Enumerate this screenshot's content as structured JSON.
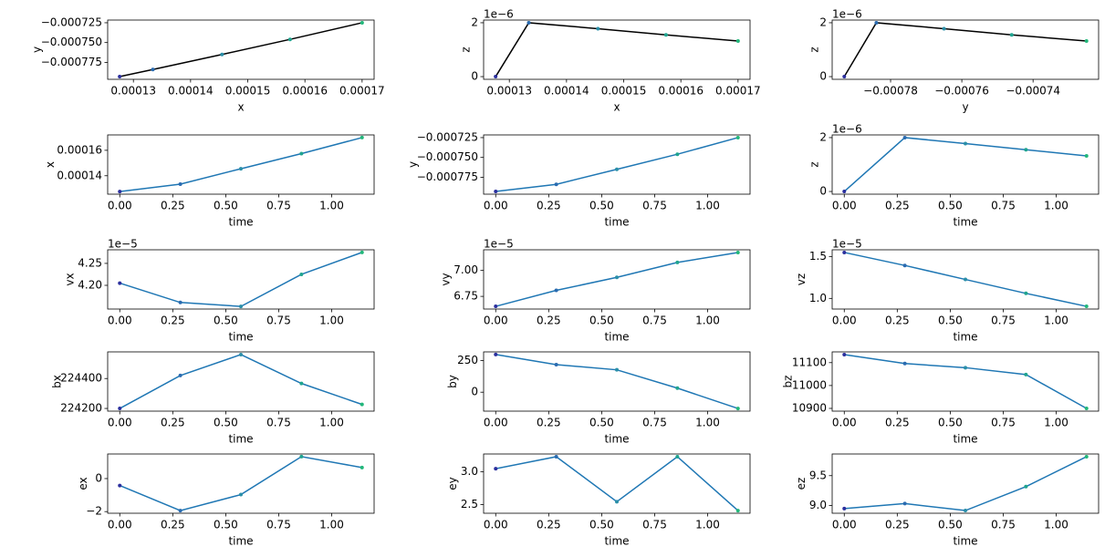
{
  "chart_data": [
    {
      "type": "line",
      "xlabel": "x",
      "ylabel": "y",
      "color": "#000000",
      "point_colors": [
        "#2b2f9e",
        "#2a6bb0",
        "#2a8fa8",
        "#1fa48f",
        "#22b77a"
      ],
      "x": [
        0.0001276,
        0.0001334,
        0.0001455,
        0.0001574,
        0.00017
      ],
      "values": [
        -0.000793,
        -0.000784,
        -0.000765,
        -0.000746,
        -0.000725
      ],
      "xlim": [
        0.0001255,
        0.0001721
      ],
      "xticks": [
        0.00013,
        0.00014,
        0.00015,
        0.00016,
        0.00017
      ],
      "ylim": [
        -0.0007964,
        -0.0007216
      ],
      "yticks": [
        {
          "value": -0.000775,
          "label": "−0.000775"
        },
        {
          "value": -0.00075,
          "label": "−0.000750"
        },
        {
          "value": -0.000725,
          "label": "−0.000725"
        }
      ]
    },
    {
      "type": "line",
      "xlabel": "x",
      "ylabel": "z",
      "offset_text": "1e−6",
      "color": "#000000",
      "point_colors": [
        "#2b2f9e",
        "#2a6bb0",
        "#2a8fa8",
        "#1fa48f",
        "#22b77a"
      ],
      "x": [
        0.0001276,
        0.0001334,
        0.0001455,
        0.0001574,
        0.00017
      ],
      "values": [
        0,
        2e-06,
        1.78e-06,
        1.55e-06,
        1.32e-06
      ],
      "xlim": [
        0.0001255,
        0.0001721
      ],
      "xticks": [
        0.00013,
        0.00014,
        0.00015,
        0.00016,
        0.00017
      ],
      "ylim": [
        -1e-07,
        2.1e-06
      ],
      "yticks": [
        0,
        {
          "value": 2e-06,
          "label": "2"
        }
      ]
    },
    {
      "type": "line",
      "xlabel": "y",
      "ylabel": "z",
      "offset_text": "1e−6",
      "color": "#000000",
      "point_colors": [
        "#2b2f9e",
        "#2a6bb0",
        "#2a8fa8",
        "#1fa48f",
        "#22b77a"
      ],
      "x": [
        -0.000793,
        -0.000784,
        -0.000765,
        -0.000746,
        -0.000725
      ],
      "values": [
        0,
        2e-06,
        1.78e-06,
        1.55e-06,
        1.32e-06
      ],
      "xlim": [
        -0.0007964,
        -0.0007216
      ],
      "xticks": [
        {
          "value": -0.00078,
          "label": "−0.00078"
        },
        {
          "value": -0.00076,
          "label": "−0.00076"
        },
        {
          "value": -0.00074,
          "label": "−0.00074"
        }
      ],
      "ylim": [
        -1e-07,
        2.1e-06
      ],
      "yticks": [
        0,
        {
          "value": 2e-06,
          "label": "2"
        }
      ]
    },
    {
      "type": "line",
      "xlabel": "time",
      "ylabel": "x",
      "color": "#1f77b4",
      "point_colors": [
        "#2b2f9e",
        "#2a6bb0",
        "#2a8fa8",
        "#1fa48f",
        "#22b77a"
      ],
      "x": [
        0,
        0.2857,
        0.5714,
        0.8571,
        1.1429
      ],
      "values": [
        0.0001276,
        0.0001334,
        0.0001455,
        0.0001574,
        0.00017
      ],
      "xlim": [
        -0.0571,
        1.2
      ],
      "xticks": [
        {
          "value": 0,
          "label": "0.00"
        },
        {
          "value": 0.25,
          "label": "0.25"
        },
        {
          "value": 0.5,
          "label": "0.50"
        },
        {
          "value": 0.75,
          "label": "0.75"
        },
        {
          "value": 1,
          "label": "1.00"
        }
      ],
      "ylim": [
        0.0001255,
        0.0001721
      ],
      "yticks": [
        0.00014,
        0.00016
      ]
    },
    {
      "type": "line",
      "xlabel": "time",
      "ylabel": "y",
      "color": "#1f77b4",
      "point_colors": [
        "#2b2f9e",
        "#2a6bb0",
        "#2a8fa8",
        "#1fa48f",
        "#22b77a"
      ],
      "x": [
        0,
        0.2857,
        0.5714,
        0.8571,
        1.1429
      ],
      "values": [
        -0.000793,
        -0.000784,
        -0.000765,
        -0.000746,
        -0.000725
      ],
      "xlim": [
        -0.0571,
        1.2
      ],
      "xticks": [
        {
          "value": 0,
          "label": "0.00"
        },
        {
          "value": 0.25,
          "label": "0.25"
        },
        {
          "value": 0.5,
          "label": "0.50"
        },
        {
          "value": 0.75,
          "label": "0.75"
        },
        {
          "value": 1,
          "label": "1.00"
        }
      ],
      "ylim": [
        -0.0007964,
        -0.0007216
      ],
      "yticks": [
        {
          "value": -0.000775,
          "label": "−0.000775"
        },
        {
          "value": -0.00075,
          "label": "−0.000750"
        },
        {
          "value": -0.000725,
          "label": "−0.000725"
        }
      ]
    },
    {
      "type": "line",
      "xlabel": "time",
      "ylabel": "z",
      "offset_text": "1e−6",
      "color": "#1f77b4",
      "point_colors": [
        "#2b2f9e",
        "#2a6bb0",
        "#2a8fa8",
        "#1fa48f",
        "#22b77a"
      ],
      "x": [
        0,
        0.2857,
        0.5714,
        0.8571,
        1.1429
      ],
      "values": [
        0,
        2e-06,
        1.78e-06,
        1.55e-06,
        1.32e-06
      ],
      "xlim": [
        -0.0571,
        1.2
      ],
      "xticks": [
        {
          "value": 0,
          "label": "0.00"
        },
        {
          "value": 0.25,
          "label": "0.25"
        },
        {
          "value": 0.5,
          "label": "0.50"
        },
        {
          "value": 0.75,
          "label": "0.75"
        },
        {
          "value": 1,
          "label": "1.00"
        }
      ],
      "ylim": [
        -1e-07,
        2.1e-06
      ],
      "yticks": [
        0,
        {
          "value": 2e-06,
          "label": "2"
        }
      ]
    },
    {
      "type": "line",
      "xlabel": "time",
      "ylabel": "vx",
      "offset_text": "1e−5",
      "color": "#1f77b4",
      "point_colors": [
        "#2b2f9e",
        "#2a6bb0",
        "#2a8fa8",
        "#1fa48f",
        "#22b77a"
      ],
      "x": [
        0,
        0.2857,
        0.5714,
        0.8571,
        1.1429
      ],
      "values": [
        4.205e-05,
        4.161e-05,
        4.152e-05,
        4.225e-05,
        4.275e-05
      ],
      "xlim": [
        -0.0571,
        1.2
      ],
      "xticks": [
        {
          "value": 0,
          "label": "0.00"
        },
        {
          "value": 0.25,
          "label": "0.25"
        },
        {
          "value": 0.5,
          "label": "0.50"
        },
        {
          "value": 0.75,
          "label": "0.75"
        },
        {
          "value": 1,
          "label": "1.00"
        }
      ],
      "ylim": [
        4.146e-05,
        4.281e-05
      ],
      "yticks": [
        {
          "value": 4.2e-05,
          "label": "4.20"
        },
        {
          "value": 4.25e-05,
          "label": "4.25"
        }
      ]
    },
    {
      "type": "line",
      "xlabel": "time",
      "ylabel": "vy",
      "offset_text": "1e−5",
      "color": "#1f77b4",
      "point_colors": [
        "#2b2f9e",
        "#2a6bb0",
        "#2a8fa8",
        "#1fa48f",
        "#22b77a"
      ],
      "x": [
        0,
        0.2857,
        0.5714,
        0.8571,
        1.1429
      ],
      "values": [
        6.654e-05,
        6.808e-05,
        6.933e-05,
        7.077e-05,
        7.173e-05
      ],
      "xlim": [
        -0.0571,
        1.2
      ],
      "xticks": [
        {
          "value": 0,
          "label": "0.00"
        },
        {
          "value": 0.25,
          "label": "0.25"
        },
        {
          "value": 0.5,
          "label": "0.50"
        },
        {
          "value": 0.75,
          "label": "0.75"
        },
        {
          "value": 1,
          "label": "1.00"
        }
      ],
      "ylim": [
        6.628e-05,
        7.199e-05
      ],
      "yticks": [
        {
          "value": 6.75e-05,
          "label": "6.75"
        },
        {
          "value": 7e-05,
          "label": "7.00"
        }
      ]
    },
    {
      "type": "line",
      "xlabel": "time",
      "ylabel": "vz",
      "offset_text": "1e−5",
      "color": "#1f77b4",
      "point_colors": [
        "#2b2f9e",
        "#2a6bb0",
        "#2a8fa8",
        "#1fa48f",
        "#22b77a"
      ],
      "x": [
        0,
        0.2857,
        0.5714,
        0.8571,
        1.1429
      ],
      "values": [
        1.548e-05,
        1.393e-05,
        1.226e-05,
        1.06e-05,
        9.05e-06
      ],
      "xlim": [
        -0.0571,
        1.2
      ],
      "xticks": [
        {
          "value": 0,
          "label": "0.00"
        },
        {
          "value": 0.25,
          "label": "0.25"
        },
        {
          "value": 0.5,
          "label": "0.50"
        },
        {
          "value": 0.75,
          "label": "0.75"
        },
        {
          "value": 1,
          "label": "1.00"
        }
      ],
      "ylim": [
        8.73e-06,
        1.58e-05
      ],
      "yticks": [
        {
          "value": 1e-05,
          "label": "1.0"
        },
        {
          "value": 1.5e-05,
          "label": "1.5"
        }
      ]
    },
    {
      "type": "line",
      "xlabel": "time",
      "ylabel": "bx",
      "color": "#1f77b4",
      "point_colors": [
        "#2b2f9e",
        "#2a6bb0",
        "#2a8fa8",
        "#1fa48f",
        "#22b77a"
      ],
      "x": [
        0,
        0.2857,
        0.5714,
        0.8571,
        1.1429
      ],
      "values": [
        224200,
        224420,
        224560,
        224367,
        224227
      ],
      "xlim": [
        -0.0571,
        1.2
      ],
      "xticks": [
        {
          "value": 0,
          "label": "0.00"
        },
        {
          "value": 0.25,
          "label": "0.25"
        },
        {
          "value": 0.5,
          "label": "0.50"
        },
        {
          "value": 0.75,
          "label": "0.75"
        },
        {
          "value": 1,
          "label": "1.00"
        }
      ],
      "ylim": [
        224182,
        224578
      ],
      "yticks": [
        224200,
        224400
      ]
    },
    {
      "type": "line",
      "xlabel": "time",
      "ylabel": "by",
      "color": "#1f77b4",
      "point_colors": [
        "#2b2f9e",
        "#2a6bb0",
        "#2a8fa8",
        "#1fa48f",
        "#22b77a"
      ],
      "x": [
        0,
        0.2857,
        0.5714,
        0.8571,
        1.1429
      ],
      "values": [
        298,
        218,
        177,
        32,
        -129
      ],
      "xlim": [
        -0.0571,
        1.2
      ],
      "xticks": [
        {
          "value": 0,
          "label": "0.00"
        },
        {
          "value": 0.25,
          "label": "0.25"
        },
        {
          "value": 0.5,
          "label": "0.50"
        },
        {
          "value": 0.75,
          "label": "0.75"
        },
        {
          "value": 1,
          "label": "1.00"
        }
      ],
      "ylim": [
        -150,
        319
      ],
      "yticks": [
        0,
        250
      ]
    },
    {
      "type": "line",
      "xlabel": "time",
      "ylabel": "bz",
      "color": "#1f77b4",
      "point_colors": [
        "#2b2f9e",
        "#2a6bb0",
        "#2a8fa8",
        "#1fa48f",
        "#22b77a"
      ],
      "x": [
        0,
        0.2857,
        0.5714,
        0.8571,
        1.1429
      ],
      "values": [
        11135,
        11096,
        11078,
        11048,
        10900
      ],
      "xlim": [
        -0.0571,
        1.2
      ],
      "xticks": [
        {
          "value": 0,
          "label": "0.00"
        },
        {
          "value": 0.25,
          "label": "0.25"
        },
        {
          "value": 0.5,
          "label": "0.50"
        },
        {
          "value": 0.75,
          "label": "0.75"
        },
        {
          "value": 1,
          "label": "1.00"
        }
      ],
      "ylim": [
        10888,
        11147
      ],
      "yticks": [
        10900,
        11000,
        11100
      ]
    },
    {
      "type": "line",
      "xlabel": "time",
      "ylabel": "ex",
      "color": "#1f77b4",
      "point_colors": [
        "#2b2f9e",
        "#2a6bb0",
        "#2a8fa8",
        "#1fa48f",
        "#22b77a"
      ],
      "x": [
        0,
        0.2857,
        0.5714,
        0.8571,
        1.1429
      ],
      "values": [
        -0.42,
        -1.94,
        -0.97,
        1.33,
        0.67
      ],
      "xlim": [
        -0.0571,
        1.2
      ],
      "xticks": [
        {
          "value": 0,
          "label": "0.00"
        },
        {
          "value": 0.25,
          "label": "0.25"
        },
        {
          "value": 0.5,
          "label": "0.50"
        },
        {
          "value": 0.75,
          "label": "0.75"
        },
        {
          "value": 1,
          "label": "1.00"
        }
      ],
      "ylim": [
        -2.1,
        1.49
      ],
      "yticks": [
        {
          "value": -2,
          "label": "−2"
        },
        0
      ]
    },
    {
      "type": "line",
      "xlabel": "time",
      "ylabel": "ey",
      "color": "#1f77b4",
      "point_colors": [
        "#2b2f9e",
        "#2a6bb0",
        "#2a8fa8",
        "#1fa48f",
        "#22b77a"
      ],
      "x": [
        0,
        0.2857,
        0.5714,
        0.8571,
        1.1429
      ],
      "values": [
        3.045,
        3.227,
        2.545,
        3.227,
        2.41
      ],
      "xlim": [
        -0.0571,
        1.2
      ],
      "xticks": [
        {
          "value": 0,
          "label": "0.00"
        },
        {
          "value": 0.25,
          "label": "0.25"
        },
        {
          "value": 0.5,
          "label": "0.50"
        },
        {
          "value": 0.75,
          "label": "0.75"
        },
        {
          "value": 1,
          "label": "1.00"
        }
      ],
      "ylim": [
        2.37,
        3.268
      ],
      "yticks": [
        {
          "value": 2.5,
          "label": "2.5"
        },
        {
          "value": 3,
          "label": "3.0"
        }
      ]
    },
    {
      "type": "line",
      "xlabel": "time",
      "ylabel": "ez",
      "color": "#1f77b4",
      "point_colors": [
        "#2b2f9e",
        "#2a6bb0",
        "#2a8fa8",
        "#1fa48f",
        "#22b77a"
      ],
      "x": [
        0,
        0.2857,
        0.5714,
        0.8571,
        1.1429
      ],
      "values": [
        8.95,
        9.033,
        8.917,
        9.317,
        9.817
      ],
      "xlim": [
        -0.0571,
        1.2
      ],
      "xticks": [
        {
          "value": 0,
          "label": "0.00"
        },
        {
          "value": 0.25,
          "label": "0.25"
        },
        {
          "value": 0.5,
          "label": "0.50"
        },
        {
          "value": 0.75,
          "label": "0.75"
        },
        {
          "value": 1,
          "label": "1.00"
        }
      ],
      "ylim": [
        8.872,
        9.862
      ],
      "yticks": [
        {
          "value": 9,
          "label": "9.0"
        },
        {
          "value": 9.5,
          "label": "9.5"
        }
      ]
    }
  ]
}
